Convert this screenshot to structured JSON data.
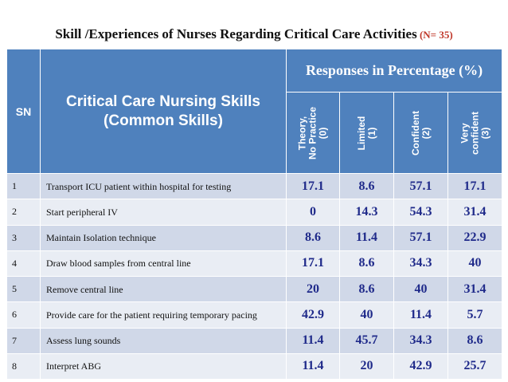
{
  "title": {
    "main": "Skill /Experiences of Nurses Regarding   Critical Care Activities",
    "n_label": " (N= 35)"
  },
  "table": {
    "header": {
      "sn": "SN",
      "skill": "Critical Care Nursing Skills (Common Skills)",
      "responses": "Responses in Percentage (%)",
      "levels": [
        {
          "line1": "Theory,",
          "line2": "No Practice",
          "line3": "(0)"
        },
        {
          "line1": "Limited",
          "line2": "(1)",
          "line3": ""
        },
        {
          "line1": "Confident",
          "line2": "(2)",
          "line3": ""
        },
        {
          "line1": "Very",
          "line2": "confident",
          "line3": "(3)"
        }
      ]
    },
    "rows": [
      {
        "sn": "1",
        "skill": "Transport ICU patient within hospital for testing",
        "values": [
          "17.1",
          "8.6",
          "57.1",
          "17.1"
        ]
      },
      {
        "sn": "2",
        "skill": "Start peripheral IV",
        "values": [
          "0",
          "14.3",
          "54.3",
          "31.4"
        ]
      },
      {
        "sn": "3",
        "skill": "Maintain Isolation technique",
        "values": [
          "8.6",
          "11.4",
          "57.1",
          "22.9"
        ]
      },
      {
        "sn": "4",
        "skill": "Draw blood samples from central line",
        "values": [
          "17.1",
          "8.6",
          "34.3",
          "40"
        ]
      },
      {
        "sn": "5",
        "skill": "Remove central line",
        "values": [
          "20",
          "8.6",
          "40",
          "31.4"
        ]
      },
      {
        "sn": "6",
        "skill": "Provide care for the patient requiring temporary pacing",
        "values": [
          "42.9",
          "40",
          "11.4",
          "5.7"
        ]
      },
      {
        "sn": "7",
        "skill": "Assess lung sounds",
        "values": [
          "11.4",
          "45.7",
          "34.3",
          "8.6"
        ]
      },
      {
        "sn": "8",
        "skill": "Interpret ABG",
        "values": [
          "11.4",
          "20",
          "42.9",
          "25.7"
        ]
      }
    ]
  }
}
